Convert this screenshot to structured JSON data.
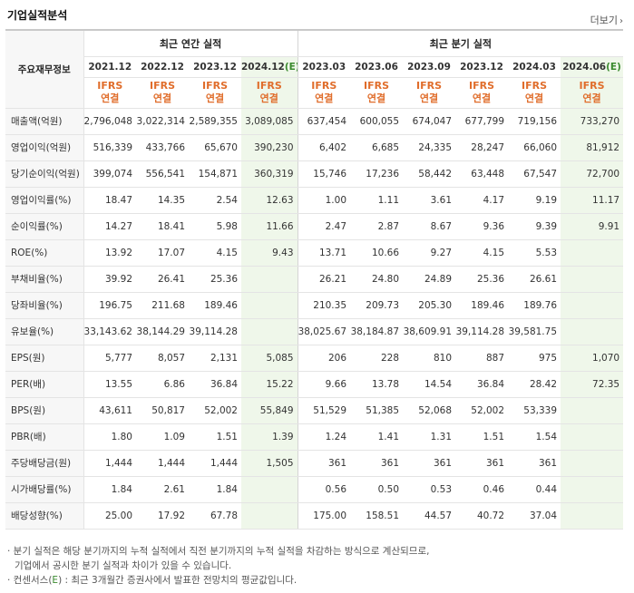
{
  "title": "기업실적분석",
  "more_label": "더보기",
  "header": {
    "label_col": "주요재무정보",
    "group_annual": "최근 연간 실적",
    "group_quarter": "최근 분기 실적",
    "annual_periods": [
      {
        "text": "2021.12",
        "est": ""
      },
      {
        "text": "2022.12",
        "est": ""
      },
      {
        "text": "2023.12",
        "est": ""
      },
      {
        "text": "2024.12",
        "est": "(E)"
      }
    ],
    "quarter_periods": [
      {
        "text": "2023.03",
        "est": ""
      },
      {
        "text": "2023.06",
        "est": ""
      },
      {
        "text": "2023.09",
        "est": ""
      },
      {
        "text": "2023.12",
        "est": ""
      },
      {
        "text": "2024.03",
        "est": ""
      },
      {
        "text": "2024.06",
        "est": "(E)"
      }
    ],
    "ifrs_line1": "IFRS",
    "ifrs_line2": "연결"
  },
  "rows": [
    {
      "label": "매출액(억원)",
      "values": [
        "2,796,048",
        "3,022,314",
        "2,589,355",
        "3,089,085",
        "637,454",
        "600,055",
        "674,047",
        "677,799",
        "719,156",
        "733,270"
      ]
    },
    {
      "label": "영업이익(억원)",
      "values": [
        "516,339",
        "433,766",
        "65,670",
        "390,230",
        "6,402",
        "6,685",
        "24,335",
        "28,247",
        "66,060",
        "81,912"
      ]
    },
    {
      "label": "당기순이익(억원)",
      "values": [
        "399,074",
        "556,541",
        "154,871",
        "360,319",
        "15,746",
        "17,236",
        "58,442",
        "63,448",
        "67,547",
        "72,700"
      ]
    },
    {
      "label": "영업이익률(%)",
      "values": [
        "18.47",
        "14.35",
        "2.54",
        "12.63",
        "1.00",
        "1.11",
        "3.61",
        "4.17",
        "9.19",
        "11.17"
      ]
    },
    {
      "label": "순이익률(%)",
      "values": [
        "14.27",
        "18.41",
        "5.98",
        "11.66",
        "2.47",
        "2.87",
        "8.67",
        "9.36",
        "9.39",
        "9.91"
      ]
    },
    {
      "label": "ROE(%)",
      "values": [
        "13.92",
        "17.07",
        "4.15",
        "9.43",
        "13.71",
        "10.66",
        "9.27",
        "4.15",
        "5.53",
        ""
      ]
    },
    {
      "label": "부채비율(%)",
      "values": [
        "39.92",
        "26.41",
        "25.36",
        "",
        "26.21",
        "24.80",
        "24.89",
        "25.36",
        "26.61",
        ""
      ]
    },
    {
      "label": "당좌비율(%)",
      "values": [
        "196.75",
        "211.68",
        "189.46",
        "",
        "210.35",
        "209.73",
        "205.30",
        "189.46",
        "189.76",
        ""
      ]
    },
    {
      "label": "유보율(%)",
      "values": [
        "33,143.62",
        "38,144.29",
        "39,114.28",
        "",
        "38,025.67",
        "38,184.87",
        "38,609.91",
        "39,114.28",
        "39,581.75",
        ""
      ]
    },
    {
      "label": "EPS(원)",
      "values": [
        "5,777",
        "8,057",
        "2,131",
        "5,085",
        "206",
        "228",
        "810",
        "887",
        "975",
        "1,070"
      ]
    },
    {
      "label": "PER(배)",
      "values": [
        "13.55",
        "6.86",
        "36.84",
        "15.22",
        "9.66",
        "13.78",
        "14.54",
        "36.84",
        "28.42",
        "72.35"
      ]
    },
    {
      "label": "BPS(원)",
      "values": [
        "43,611",
        "50,817",
        "52,002",
        "55,849",
        "51,529",
        "51,385",
        "52,068",
        "52,002",
        "53,339",
        ""
      ]
    },
    {
      "label": "PBR(배)",
      "values": [
        "1.80",
        "1.09",
        "1.51",
        "1.39",
        "1.24",
        "1.41",
        "1.31",
        "1.51",
        "1.54",
        ""
      ]
    },
    {
      "label": "주당배당금(원)",
      "values": [
        "1,444",
        "1,444",
        "1,444",
        "1,505",
        "361",
        "361",
        "361",
        "361",
        "361",
        ""
      ]
    },
    {
      "label": "시가배당률(%)",
      "values": [
        "1.84",
        "2.61",
        "1.84",
        "",
        "0.56",
        "0.50",
        "0.53",
        "0.46",
        "0.44",
        ""
      ]
    },
    {
      "label": "배당성향(%)",
      "values": [
        "25.00",
        "17.92",
        "67.78",
        "",
        "175.00",
        "158.51",
        "44.57",
        "40.72",
        "37.04",
        ""
      ]
    }
  ],
  "notes": {
    "line1": "· 분기 실적은 해당 분기까지의 누적 실적에서 직전 분기까지의 누적 실적을 차감하는 방식으로 계산되므로,",
    "line2": "기업에서 공시한 분기 실적과 차이가 있을 수 있습니다.",
    "line3_pre": "· 컨센서스(",
    "line3_e": "E",
    "line3_post": ") : 최근 3개월간 증권사에서 발표한 전망치의 평균값입니다."
  }
}
